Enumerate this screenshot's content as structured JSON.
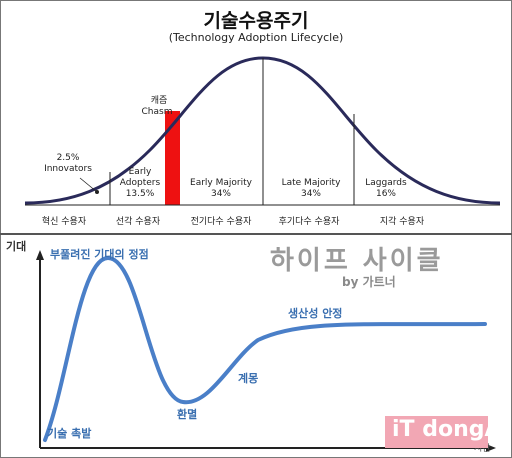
{
  "top_diagram": {
    "title": "기술수용주기",
    "subtitle": "(Technology Adoption Lifecycle)",
    "chasm": {
      "label_ko": "캐즘",
      "label_en": "Chasm",
      "color": "#ee1111"
    },
    "curve_color": "#2a2a5a",
    "segments": [
      {
        "name": "Innovators",
        "percent": "2.5%",
        "category": "혁신 수용자"
      },
      {
        "name": "Early Adopters",
        "line1": "Early",
        "line2": "Adopters",
        "percent": "13.5%",
        "category": "선각 수용자"
      },
      {
        "name": "Early Majority",
        "percent": "34%",
        "category": "전기다수 수용자"
      },
      {
        "name": "Late Majority",
        "percent": "34%",
        "category": "후기다수 수용자"
      },
      {
        "name": "Laggards",
        "percent": "16%",
        "category": "지각 수용자"
      }
    ]
  },
  "bottom_diagram": {
    "y_axis_label": "기대",
    "x_axis_label": "시간",
    "curve_color": "#4a7fc8",
    "brand_title": "하이프 사이클",
    "brand_subtitle": "by 가트너",
    "phases": [
      {
        "label": "기술 촉발"
      },
      {
        "label": "부풀려진 기대의 정점"
      },
      {
        "label": "환멸"
      },
      {
        "label": "계몽"
      },
      {
        "label": "생산성 안정"
      }
    ]
  },
  "watermark": {
    "text": "iT dongA"
  }
}
